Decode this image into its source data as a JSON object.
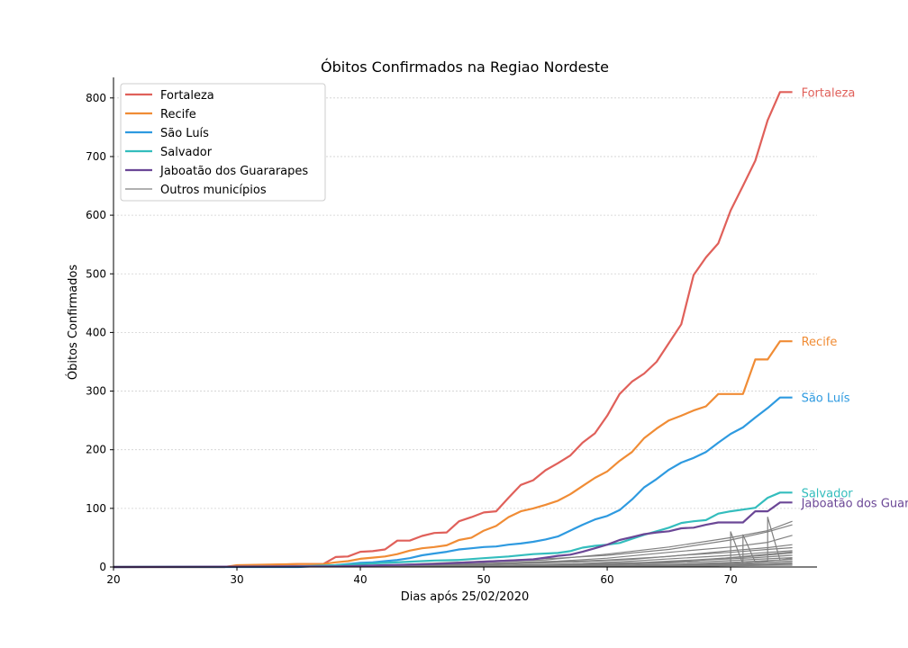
{
  "chart_data": {
    "type": "line",
    "title": "Óbitos Confirmados na Regiao Nordeste",
    "xlabel": "Dias após 25/02/2020",
    "ylabel": "Óbitos Confirmados",
    "xlim": [
      20,
      77
    ],
    "ylim": [
      0,
      835
    ],
    "xticks": [
      20,
      30,
      40,
      50,
      60,
      70
    ],
    "yticks": [
      0,
      100,
      200,
      300,
      400,
      500,
      600,
      700,
      800
    ],
    "grid": "horizontal dotted",
    "legend_position": "top-left",
    "series": [
      {
        "name": "Fortaleza",
        "color": "#e0605a",
        "end_label": "Fortaleza",
        "x": [
          20,
          29,
          30,
          35,
          37,
          38,
          39,
          40,
          41,
          42,
          43,
          44,
          45,
          46,
          47,
          48,
          49,
          50,
          51,
          52,
          53,
          54,
          55,
          56,
          57,
          58,
          59,
          60,
          61,
          62,
          63,
          64,
          65,
          66,
          67,
          68,
          69,
          70,
          71,
          72,
          73,
          74,
          75
        ],
        "y": [
          0,
          0,
          2,
          5,
          5,
          17,
          18,
          26,
          27,
          30,
          45,
          45,
          53,
          58,
          59,
          78,
          85,
          93,
          95,
          118,
          140,
          148,
          165,
          177,
          190,
          212,
          228,
          258,
          295,
          316,
          330,
          350,
          382,
          414,
          498,
          528,
          552,
          608,
          650,
          693,
          762,
          810,
          810
        ]
      },
      {
        "name": "Recife",
        "color": "#f08c35",
        "end_label": "Recife",
        "x": [
          20,
          29,
          30,
          35,
          37,
          38,
          39,
          40,
          41,
          42,
          43,
          44,
          45,
          46,
          47,
          48,
          49,
          50,
          51,
          52,
          53,
          54,
          55,
          56,
          57,
          58,
          59,
          60,
          61,
          62,
          63,
          64,
          65,
          66,
          67,
          68,
          69,
          70,
          71,
          72,
          73,
          74,
          75
        ],
        "y": [
          0,
          0,
          3,
          5,
          5,
          8,
          10,
          14,
          16,
          18,
          22,
          28,
          32,
          34,
          37,
          46,
          50,
          62,
          70,
          85,
          95,
          100,
          106,
          113,
          124,
          138,
          152,
          163,
          181,
          196,
          220,
          236,
          250,
          258,
          267,
          274,
          295,
          295,
          295,
          354,
          354,
          385,
          385
        ]
      },
      {
        "name": "São Luís",
        "color": "#2e9ae0",
        "end_label": "São Luís",
        "x": [
          20,
          35,
          37,
          38,
          39,
          40,
          41,
          42,
          43,
          44,
          45,
          46,
          47,
          48,
          49,
          50,
          51,
          52,
          53,
          54,
          55,
          56,
          57,
          58,
          59,
          60,
          61,
          62,
          63,
          64,
          65,
          66,
          67,
          68,
          69,
          70,
          71,
          72,
          73,
          74,
          75
        ],
        "y": [
          0,
          0,
          2,
          3,
          5,
          7,
          8,
          10,
          12,
          15,
          20,
          23,
          26,
          30,
          32,
          34,
          35,
          38,
          40,
          43,
          47,
          52,
          62,
          72,
          81,
          87,
          97,
          115,
          136,
          150,
          166,
          178,
          186,
          196,
          212,
          227,
          238,
          255,
          271,
          289,
          289
        ]
      },
      {
        "name": "Salvador",
        "color": "#33bdbd",
        "end_label": "Salvador",
        "x": [
          20,
          35,
          38,
          40,
          42,
          44,
          46,
          48,
          50,
          52,
          54,
          56,
          57,
          58,
          59,
          60,
          61,
          62,
          63,
          64,
          65,
          66,
          67,
          68,
          69,
          70,
          71,
          72,
          73,
          74,
          75
        ],
        "y": [
          0,
          1,
          3,
          5,
          7,
          9,
          11,
          12,
          15,
          18,
          22,
          24,
          27,
          33,
          36,
          38,
          41,
          48,
          55,
          61,
          67,
          75,
          78,
          80,
          91,
          95,
          98,
          101,
          118,
          127,
          127
        ]
      },
      {
        "name": "Jaboatão dos Guararapes",
        "color": "#6b4796",
        "end_label": "Jaboatão dos Guararapes",
        "x": [
          20,
          38,
          40,
          42,
          44,
          46,
          48,
          50,
          52,
          54,
          55,
          56,
          57,
          58,
          59,
          60,
          61,
          62,
          63,
          64,
          65,
          66,
          67,
          68,
          69,
          70,
          71,
          72,
          73,
          74,
          75
        ],
        "y": [
          0,
          1,
          2,
          3,
          4,
          5,
          7,
          9,
          11,
          13,
          16,
          19,
          21,
          26,
          32,
          38,
          46,
          51,
          56,
          59,
          61,
          66,
          67,
          72,
          76,
          76,
          76,
          95,
          95,
          110,
          110
        ]
      },
      {
        "name": "Outros municípios",
        "color": "#808080",
        "x": [
          20,
          40,
          50,
          55,
          60,
          65,
          70,
          73,
          75
        ],
        "y": [
          0,
          2,
          8,
          12,
          22,
          34,
          50,
          62,
          78
        ]
      },
      {
        "color": "#808080",
        "x": [
          20,
          42,
          50,
          56,
          60,
          65,
          70,
          73,
          75
        ],
        "y": [
          0,
          3,
          10,
          15,
          20,
          30,
          46,
          60,
          72
        ]
      },
      {
        "color": "#808080",
        "x": [
          20,
          42,
          50,
          56,
          60,
          65,
          70,
          73,
          75
        ],
        "y": [
          0,
          2,
          6,
          10,
          15,
          25,
          34,
          42,
          54
        ]
      },
      {
        "color": "#808080",
        "x": [
          20,
          45,
          50,
          55,
          60,
          65,
          70,
          73,
          75
        ],
        "y": [
          0,
          2,
          5,
          8,
          12,
          18,
          28,
          33,
          38
        ]
      },
      {
        "color": "#808080",
        "x": [
          20,
          45,
          52,
          58,
          62,
          66,
          70,
          73,
          75
        ],
        "y": [
          0,
          2,
          5,
          9,
          13,
          20,
          25,
          30,
          33
        ]
      },
      {
        "color": "#808080",
        "x": [
          20,
          45,
          52,
          58,
          62,
          66,
          70,
          73,
          75
        ],
        "y": [
          0,
          1,
          3,
          6,
          10,
          15,
          20,
          25,
          28
        ]
      },
      {
        "color": "#808080",
        "x": [
          20,
          46,
          53,
          58,
          63,
          67,
          71,
          74,
          75
        ],
        "y": [
          0,
          1,
          3,
          5,
          8,
          12,
          17,
          22,
          24
        ]
      },
      {
        "color": "#808080",
        "x": [
          20,
          48,
          55,
          60,
          64,
          68,
          72,
          75
        ],
        "y": [
          0,
          1,
          3,
          5,
          8,
          12,
          16,
          20
        ]
      },
      {
        "color": "#808080",
        "x": [
          20,
          48,
          55,
          60,
          65,
          69,
          72,
          75
        ],
        "y": [
          0,
          1,
          2,
          4,
          7,
          10,
          13,
          16
        ]
      },
      {
        "color": "#808080",
        "x": [
          20,
          50,
          56,
          61,
          66,
          70,
          73,
          75
        ],
        "y": [
          0,
          1,
          2,
          3,
          5,
          8,
          11,
          13
        ]
      },
      {
        "color": "#808080",
        "x": [
          20,
          50,
          58,
          63,
          68,
          72,
          75
        ],
        "y": [
          0,
          1,
          2,
          3,
          5,
          8,
          10
        ]
      },
      {
        "color": "#808080",
        "x": [
          20,
          52,
          60,
          66,
          70,
          73,
          75
        ],
        "y": [
          0,
          1,
          2,
          3,
          5,
          6,
          7
        ]
      },
      {
        "color": "#808080",
        "x": [
          20,
          55,
          62,
          68,
          72,
          75
        ],
        "y": [
          0,
          1,
          2,
          3,
          4,
          5
        ]
      },
      {
        "color": "#808080",
        "x": [
          20,
          58,
          65,
          70,
          74,
          75
        ],
        "y": [
          0,
          1,
          1,
          2,
          3,
          3
        ]
      },
      {
        "color": "#808080",
        "x": [
          20,
          69,
          70,
          70,
          71,
          72,
          75
        ],
        "y": [
          0,
          2,
          5,
          60,
          5,
          8,
          10
        ]
      },
      {
        "color": "#808080",
        "x": [
          20,
          70,
          71,
          71,
          72,
          73,
          73,
          74,
          75
        ],
        "y": [
          0,
          3,
          5,
          55,
          8,
          10,
          85,
          12,
          15
        ]
      },
      {
        "color": "#808080",
        "x": [
          20,
          60,
          66,
          70,
          73,
          75
        ],
        "y": [
          0,
          4,
          9,
          16,
          22,
          26
        ]
      }
    ]
  }
}
